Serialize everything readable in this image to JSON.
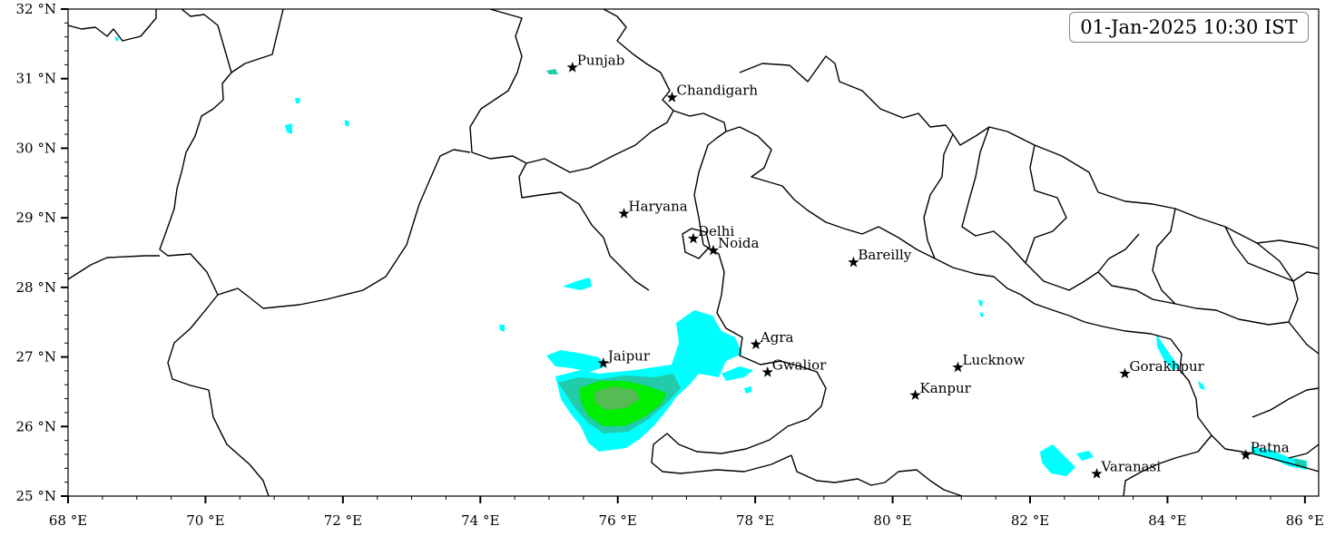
{
  "timestamp": "01-Jan-2025 10:30 IST",
  "axes": {
    "lon_min": 68,
    "lon_max": 86.2,
    "lat_min": 25,
    "lat_max": 32,
    "x_ticks": [
      {
        "value": 68,
        "label": "68 °E"
      },
      {
        "value": 70,
        "label": "70 °E"
      },
      {
        "value": 72,
        "label": "72 °E"
      },
      {
        "value": 74,
        "label": "74 °E"
      },
      {
        "value": 76,
        "label": "76 °E"
      },
      {
        "value": 78,
        "label": "78 °E"
      },
      {
        "value": 80,
        "label": "80 °E"
      },
      {
        "value": 82,
        "label": "82 °E"
      },
      {
        "value": 84,
        "label": "84 °E"
      },
      {
        "value": 86,
        "label": "86 °E"
      }
    ],
    "y_ticks": [
      {
        "value": 25,
        "label": "25 °N"
      },
      {
        "value": 26,
        "label": "26 °N"
      },
      {
        "value": 27,
        "label": "27 °N"
      },
      {
        "value": 28,
        "label": "28 °N"
      },
      {
        "value": 29,
        "label": "29 °N"
      },
      {
        "value": 30,
        "label": "30 °N"
      },
      {
        "value": 31,
        "label": "31 °N"
      },
      {
        "value": 32,
        "label": "32 °N"
      }
    ]
  },
  "cities": [
    {
      "name": "Punjab",
      "lon": 75.34,
      "lat": 31.16
    },
    {
      "name": "Chandigarh",
      "lon": 76.79,
      "lat": 30.73
    },
    {
      "name": "Haryana",
      "lon": 76.09,
      "lat": 29.06
    },
    {
      "name": "Delhi",
      "lon": 77.1,
      "lat": 28.7
    },
    {
      "name": "Noida",
      "lon": 77.39,
      "lat": 28.53
    },
    {
      "name": "Bareilly",
      "lon": 79.43,
      "lat": 28.36
    },
    {
      "name": "Agra",
      "lon": 78.01,
      "lat": 27.18
    },
    {
      "name": "Jaipur",
      "lon": 75.79,
      "lat": 26.91
    },
    {
      "name": "Gwalior",
      "lon": 78.18,
      "lat": 26.78
    },
    {
      "name": "Lucknow",
      "lon": 80.95,
      "lat": 26.85
    },
    {
      "name": "Kanpur",
      "lon": 80.33,
      "lat": 26.45
    },
    {
      "name": "Gorakhpur",
      "lon": 83.38,
      "lat": 26.76
    },
    {
      "name": "Varanasi",
      "lon": 82.97,
      "lat": 25.32
    },
    {
      "name": "Patna",
      "lon": 85.14,
      "lat": 25.59
    }
  ],
  "colors": {
    "fog_light": "#00ffff",
    "fog_moderate": "#22ccaa",
    "fog_dense": "#00ee00",
    "fog_core": "#55bb55",
    "border": "#000000"
  }
}
